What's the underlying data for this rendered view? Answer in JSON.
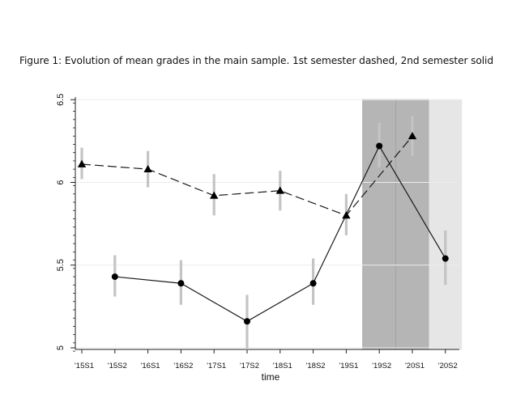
{
  "caption": "Figure 1: Evolution of mean grades in the main sample. 1st semester dashed, 2nd semester solid",
  "chart_data": {
    "type": "line",
    "categories": [
      "'15S1",
      "'15S2",
      "'16S1",
      "'16S2",
      "'17S1",
      "'17S2",
      "'18S1",
      "'18S2",
      "'19S1",
      "'19S2",
      "'20S1",
      "'20S2"
    ],
    "xlabel": "time",
    "ylabel": "",
    "ylim": [
      4.98,
      6.52
    ],
    "yticks": [
      "5",
      "5.5",
      "6",
      "6.5"
    ],
    "grid": true,
    "shaded_periods": [
      {
        "from": "'19S2",
        "to": "'19S2",
        "color": "#b5b5b5"
      },
      {
        "from": "'20S1",
        "to": "'20S1",
        "color": "#b5b5b5"
      },
      {
        "from": "'20S2",
        "to": "'20S2",
        "color": "#e6e6e6"
      }
    ],
    "series": [
      {
        "style": "dashed",
        "marker": "triangle",
        "x": [
          "'15S1",
          "'16S1",
          "'17S1",
          "'18S1",
          "'19S1",
          "'20S1"
        ],
        "values": [
          6.11,
          6.08,
          5.92,
          5.95,
          5.8,
          6.28
        ],
        "ci_low": [
          6.02,
          5.97,
          5.8,
          5.83,
          5.68,
          6.16
        ],
        "ci_high": [
          6.21,
          6.19,
          6.05,
          6.07,
          5.93,
          6.4
        ]
      },
      {
        "style": "solid",
        "marker": "circle",
        "x": [
          "'15S2",
          "'16S2",
          "'17S2",
          "'18S2",
          "'19S2",
          "'20S2"
        ],
        "values": [
          5.43,
          5.39,
          5.16,
          5.39,
          6.22,
          5.54
        ],
        "ci_low": [
          5.31,
          5.26,
          4.99,
          5.26,
          6.09,
          5.38
        ],
        "ci_high": [
          5.56,
          5.53,
          5.32,
          5.54,
          6.36,
          5.71
        ]
      }
    ]
  }
}
